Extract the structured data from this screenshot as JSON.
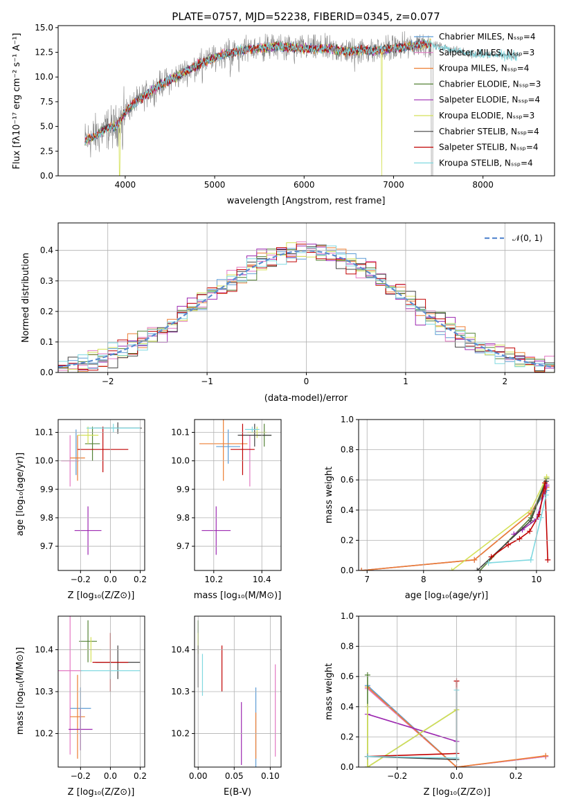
{
  "colors": {
    "chabrier_miles": "#5b9bd5",
    "salpeter_miles": "#e377c2",
    "kroupa_miles": "#ed7d31",
    "chabrier_elodie": "#548235",
    "salpeter_elodie": "#9c27b0",
    "kroupa_elodie": "#d4e157",
    "chabrier_stelib": "#404040",
    "salpeter_stelib": "#c00000",
    "kroupa_stelib": "#7fd8e0",
    "data": "#808080",
    "normal": "#5b8bd0"
  },
  "chart_data": [
    {
      "id": "spectrum",
      "type": "line",
      "title": "PLATE=0757, MJD=52238, FIBERID=0345, z=0.077",
      "xlabel": "wavelength [Angstrom, rest frame]",
      "ylabel": "Flux [fλ10⁻¹⁷ erg cm⁻² s⁻¹ A⁻¹]",
      "xlim": [
        3250,
        8800
      ],
      "ylim": [
        0,
        15.2
      ],
      "xticks": [
        "4000",
        "5000",
        "6000",
        "7000",
        "8000"
      ],
      "yticks": [
        "0.0",
        "2.5",
        "5.0",
        "7.5",
        "10.0",
        "12.5",
        "15.0"
      ],
      "legend": "upper-right",
      "series": [
        {
          "name": "Chabrier MILES, Nₛₛₚ=4",
          "key": "chabrier_miles"
        },
        {
          "name": "Salpeter MILES, Nₛₛₚ=3",
          "key": "salpeter_miles"
        },
        {
          "name": "Kroupa MILES, Nₛₛₚ=4",
          "key": "kroupa_miles"
        },
        {
          "name": "Chabrier ELODIE, Nₛₛₚ=3",
          "key": "chabrier_elodie"
        },
        {
          "name": "Salpeter ELODIE, Nₛₛₚ=4",
          "key": "salpeter_elodie"
        },
        {
          "name": "Kroupa ELODIE, Nₛₛₚ=3",
          "key": "kroupa_elodie"
        },
        {
          "name": "Chabrier STELIB, Nₛₛₚ=4",
          "key": "chabrier_stelib"
        },
        {
          "name": "Salpeter STELIB, Nₛₛₚ=4",
          "key": "salpeter_stelib"
        },
        {
          "name": "Kroupa STELIB, Nₛₛₚ=4",
          "key": "kroupa_stelib"
        }
      ],
      "continuum": [
        [
          3550,
          3.5
        ],
        [
          3700,
          4.2
        ],
        [
          3800,
          4.8
        ],
        [
          3900,
          5.0
        ],
        [
          4000,
          6.5
        ],
        [
          4100,
          7.3
        ],
        [
          4200,
          8.0
        ],
        [
          4300,
          8.6
        ],
        [
          4400,
          9.3
        ],
        [
          4500,
          9.7
        ],
        [
          4700,
          10.7
        ],
        [
          4900,
          11.6
        ],
        [
          5100,
          12.3
        ],
        [
          5300,
          12.7
        ],
        [
          5500,
          12.9
        ],
        [
          5700,
          13.1
        ],
        [
          6000,
          12.9
        ],
        [
          6300,
          12.8
        ],
        [
          6500,
          12.6
        ],
        [
          6600,
          12.7
        ],
        [
          6800,
          12.7
        ],
        [
          7000,
          12.9
        ],
        [
          7200,
          13.1
        ],
        [
          7300,
          13.3
        ],
        [
          7420,
          13.4
        ]
      ],
      "stelib_ext": [
        [
          7420,
          13.3
        ],
        [
          7600,
          12.9
        ],
        [
          7800,
          12.4
        ],
        [
          8000,
          12.3
        ],
        [
          8200,
          12.2
        ],
        [
          8400,
          12.1
        ]
      ],
      "model_wmax": 7420,
      "dips": [
        [
          3935,
          0.0
        ],
        [
          3970,
          2.5
        ],
        [
          4102,
          6.4
        ],
        [
          4862,
          8.9
        ],
        [
          5176,
          9.8
        ],
        [
          5270,
          10.0
        ],
        [
          5892,
          10.8
        ],
        [
          6563,
          10.5
        ],
        [
          6868,
          0.0
        ],
        [
          7400,
          0.0
        ]
      ],
      "noise_amp": 1.0
    },
    {
      "id": "residuals",
      "type": "bar",
      "xlabel": "(data-model)/error",
      "ylabel": "Normed distribution",
      "xlim": [
        -2.5,
        2.5
      ],
      "ylim": [
        0,
        0.49
      ],
      "xticks": [
        "−2",
        "−1",
        "0",
        "1",
        "2"
      ],
      "yticks": [
        "0.0",
        "0.1",
        "0.2",
        "0.3",
        "0.4"
      ],
      "legend": "upper-right",
      "normal_label": "𝒩(0, 1)",
      "bin_edges": [
        -2.5,
        2.5
      ],
      "bins": 50
    },
    {
      "id": "z-age",
      "type": "scatter",
      "xlabel": "Z [log₁₀(Z/Z⊙)]",
      "ylabel": "age  [log₁₀(age/yr)]",
      "xlim": [
        -0.35,
        0.23
      ],
      "ylim": [
        9.615,
        10.145
      ],
      "xticks": [
        "−0.2",
        "0.0",
        "0.2"
      ],
      "yticks": [
        "9.7",
        "9.8",
        "9.9",
        "10.0",
        "10.1"
      ],
      "points": [
        {
          "key": "chabrier_miles",
          "x": -0.23,
          "xerr": 0.0,
          "y": 10.03,
          "yerr": 0.08
        },
        {
          "key": "salpeter_miles",
          "x": -0.27,
          "xerr": 0.06,
          "y": 10.0,
          "yerr": 0.09
        },
        {
          "key": "kroupa_miles",
          "x": -0.22,
          "xerr": 0.05,
          "y": 10.01,
          "yerr": 0.08
        },
        {
          "key": "chabrier_elodie",
          "x": -0.12,
          "xerr": 0.05,
          "y": 10.06,
          "yerr": 0.06
        },
        {
          "key": "salpeter_elodie",
          "x": -0.15,
          "xerr": 0.09,
          "y": 9.755,
          "yerr": 0.085
        },
        {
          "key": "kroupa_elodie",
          "x": -0.15,
          "xerr": 0.07,
          "y": 10.09,
          "yerr": 0.03
        },
        {
          "key": "chabrier_stelib",
          "x": 0.05,
          "xerr": 0.16,
          "y": 10.115,
          "yerr": 0.02
        },
        {
          "key": "salpeter_stelib",
          "x": -0.05,
          "xerr": 0.17,
          "y": 10.04,
          "yerr": 0.08
        },
        {
          "key": "kroupa_stelib",
          "x": 0.02,
          "xerr": 0.18,
          "y": 10.115,
          "yerr": 0.015
        }
      ]
    },
    {
      "id": "mass-age",
      "type": "scatter",
      "xlabel": "mass [log₁₀(M/M⊙)]",
      "ylabel": "",
      "xlim": [
        10.12,
        10.48
      ],
      "ylim": [
        9.615,
        10.145
      ],
      "xticks": [
        "10.2",
        "10.4"
      ],
      "yticks": [
        "9.7",
        "9.8",
        "9.9",
        "10.0",
        "10.1"
      ],
      "points": [
        {
          "key": "chabrier_miles",
          "x": 10.26,
          "xerr": 0.05,
          "y": 10.05,
          "yerr": 0.06
        },
        {
          "key": "salpeter_miles",
          "x": 10.35,
          "xerr": 0.0,
          "y": 10.0,
          "yerr": 0.09
        },
        {
          "key": "kroupa_miles",
          "x": 10.24,
          "xerr": 0.1,
          "y": 10.06,
          "yerr": 0.13
        },
        {
          "key": "chabrier_elodie",
          "x": 10.41,
          "xerr": 0.03,
          "y": 10.09,
          "yerr": 0.04
        },
        {
          "key": "salpeter_elodie",
          "x": 10.21,
          "xerr": 0.06,
          "y": 9.755,
          "yerr": 0.085
        },
        {
          "key": "kroupa_elodie",
          "x": 10.38,
          "xerr": 0.04,
          "y": 10.1,
          "yerr": 0.02
        },
        {
          "key": "chabrier_stelib",
          "x": 10.37,
          "xerr": 0.07,
          "y": 10.09,
          "yerr": 0.04
        },
        {
          "key": "salpeter_stelib",
          "x": 10.32,
          "xerr": 0.05,
          "y": 10.04,
          "yerr": 0.09
        },
        {
          "key": "kroupa_stelib",
          "x": 10.36,
          "xerr": 0.03,
          "y": 10.11,
          "yerr": 0.01
        }
      ]
    },
    {
      "id": "age-weight",
      "type": "line",
      "xlabel": "age  [log₁₀(age/yr)]",
      "ylabel": "mass weight",
      "xlim": [
        6.85,
        10.32
      ],
      "ylim": [
        0,
        1
      ],
      "xticks": [
        "7",
        "8",
        "9",
        "10"
      ],
      "yticks": [
        "0.0",
        "0.2",
        "0.4",
        "0.6",
        "0.8",
        "1.0"
      ],
      "series": [
        {
          "key": "chabrier_miles",
          "points": [
            [
              6.9,
              0.0
            ],
            [
              8.9,
              0.07
            ],
            [
              9.9,
              0.38
            ],
            [
              10.18,
              0.53
            ]
          ]
        },
        {
          "key": "salpeter_miles",
          "points": [
            [
              6.9,
              0.0
            ],
            [
              8.9,
              0.07
            ],
            [
              9.9,
              0.38
            ],
            [
              10.18,
              0.57
            ]
          ]
        },
        {
          "key": "kroupa_miles",
          "points": [
            [
              6.9,
              0.0
            ],
            [
              8.9,
              0.07
            ],
            [
              9.9,
              0.38
            ],
            [
              10.18,
              0.55
            ]
          ]
        },
        {
          "key": "chabrier_elodie",
          "points": [
            [
              9.0,
              0.0
            ],
            [
              9.9,
              0.35
            ],
            [
              10.18,
              0.61
            ]
          ]
        },
        {
          "key": "salpeter_elodie",
          "points": [
            [
              9.6,
              0.24
            ],
            [
              9.75,
              0.27
            ],
            [
              10.0,
              0.34
            ],
            [
              10.18,
              0.56
            ]
          ]
        },
        {
          "key": "kroupa_elodie",
          "points": [
            [
              8.5,
              0.0
            ],
            [
              9.9,
              0.4
            ],
            [
              10.18,
              0.62
            ]
          ]
        },
        {
          "key": "chabrier_stelib",
          "points": [
            [
              8.95,
              0.0
            ],
            [
              9.9,
              0.33
            ],
            [
              10.17,
              0.59
            ]
          ]
        },
        {
          "key": "salpeter_stelib",
          "points": [
            [
              9.2,
              0.09
            ],
            [
              9.5,
              0.17
            ],
            [
              9.7,
              0.21
            ],
            [
              9.88,
              0.26
            ],
            [
              10.05,
              0.37
            ],
            [
              10.15,
              0.58
            ],
            [
              10.2,
              0.07
            ]
          ]
        },
        {
          "key": "kroupa_stelib",
          "points": [
            [
              9.15,
              0.05
            ],
            [
              9.9,
              0.07
            ],
            [
              10.08,
              0.35
            ],
            [
              10.17,
              0.5
            ]
          ]
        }
      ]
    },
    {
      "id": "z-mass",
      "type": "scatter",
      "xlabel": "Z [log₁₀(Z/Z⊙)]",
      "ylabel": "mass [log₁₀(M/M⊙)]",
      "xlim": [
        -0.35,
        0.23
      ],
      "ylim": [
        10.12,
        10.48
      ],
      "xticks": [
        "−0.2",
        "0.0",
        "0.2"
      ],
      "yticks": [
        "10.2",
        "10.3",
        "10.4"
      ],
      "points": [
        {
          "key": "chabrier_miles",
          "x": -0.2,
          "xerr": 0.07,
          "y": 10.26,
          "yerr": 0.05
        },
        {
          "key": "salpeter_miles",
          "x": -0.27,
          "xerr": 0.08,
          "y": 10.35,
          "yerr": 0.2
        },
        {
          "key": "kroupa_miles",
          "x": -0.22,
          "xerr": 0.05,
          "y": 10.24,
          "yerr": 0.1
        },
        {
          "key": "chabrier_elodie",
          "x": -0.15,
          "xerr": 0.06,
          "y": 10.42,
          "yerr": 0.05
        },
        {
          "key": "salpeter_elodie",
          "x": -0.2,
          "xerr": 0.08,
          "y": 10.21,
          "yerr": 0.05
        },
        {
          "key": "kroupa_elodie",
          "x": -0.13,
          "xerr": 0.07,
          "y": 10.4,
          "yerr": 0.03
        },
        {
          "key": "chabrier_stelib",
          "x": 0.05,
          "xerr": 0.15,
          "y": 10.37,
          "yerr": 0.04
        },
        {
          "key": "salpeter_stelib",
          "x": 0.0,
          "xerr": 0.12,
          "y": 10.37,
          "yerr": 0.07
        },
        {
          "key": "kroupa_stelib",
          "x": 0.0,
          "xerr": 0.2,
          "y": 10.35,
          "yerr": 0.02
        }
      ]
    },
    {
      "id": "ebv-mass",
      "type": "scatter",
      "xlabel": "E(B-V)",
      "ylabel": "",
      "xlim": [
        -0.005,
        0.115
      ],
      "ylim": [
        10.12,
        10.48
      ],
      "xticks": [
        "0.00",
        "0.05",
        "0.10"
      ],
      "yticks": [
        "10.2",
        "10.3",
        "10.4"
      ],
      "points": [
        {
          "key": "chabrier_miles",
          "x": 0.08,
          "xerr": 0.0,
          "y": 10.2,
          "yerr": 0.11
        },
        {
          "key": "salpeter_miles",
          "x": 0.107,
          "xerr": 0.0,
          "y": 10.255,
          "yerr": 0.11
        },
        {
          "key": "kroupa_miles",
          "x": 0.08,
          "xerr": 0.0,
          "y": 10.195,
          "yerr": 0.055
        },
        {
          "key": "chabrier_elodie",
          "x": 0.0,
          "xerr": 0.0,
          "y": 10.43,
          "yerr": 0.04
        },
        {
          "key": "salpeter_elodie",
          "x": 0.06,
          "xerr": 0.0,
          "y": 10.2,
          "yerr": 0.075
        },
        {
          "key": "kroupa_elodie",
          "x": 0.0,
          "xerr": 0.0,
          "y": 10.415,
          "yerr": 0.025
        },
        {
          "key": "chabrier_stelib",
          "x": 0.0,
          "xerr": 0.0,
          "y": 10.36,
          "yerr": 0.05
        },
        {
          "key": "salpeter_stelib",
          "x": 0.033,
          "xerr": 0.0,
          "y": 10.355,
          "yerr": 0.055
        },
        {
          "key": "kroupa_stelib",
          "x": 0.006,
          "xerr": 0.0,
          "y": 10.34,
          "yerr": 0.05
        }
      ]
    },
    {
      "id": "z-weight",
      "type": "line",
      "xlabel": "Z [log₁₀(Z/Z⊙)]",
      "ylabel": "mass weight",
      "xlim": [
        -0.33,
        0.33
      ],
      "ylim": [
        0,
        1
      ],
      "xticks": [
        "−0.2",
        "0.0",
        "0.2"
      ],
      "yticks": [
        "0.0",
        "0.2",
        "0.4",
        "0.6",
        "0.8",
        "1.0"
      ],
      "series": [
        {
          "key": "chabrier_miles",
          "points": [
            [
              -0.3,
              0.54
            ],
            [
              0.0,
              0.0
            ],
            [
              0.3,
              0.07
            ]
          ]
        },
        {
          "key": "salpeter_miles",
          "points": [
            [
              -0.3,
              0.52
            ],
            [
              0.0,
              0.0
            ],
            [
              0.3,
              0.07
            ]
          ]
        },
        {
          "key": "kroupa_miles",
          "points": [
            [
              -0.3,
              0.53
            ],
            [
              0.0,
              0.0
            ],
            [
              0.3,
              0.075
            ]
          ]
        },
        {
          "key": "chabrier_elodie",
          "points": [
            [
              -0.3,
              0.61
            ],
            [
              -0.3,
              0.0
            ],
            [
              0.0,
              0.38
            ]
          ]
        },
        {
          "key": "salpeter_elodie",
          "points": [
            [
              -0.3,
              0.35
            ],
            [
              0.0,
              0.17
            ]
          ]
        },
        {
          "key": "kroupa_elodie",
          "points": [
            [
              -0.3,
              0.4
            ],
            [
              -0.3,
              0.0
            ],
            [
              0.0,
              0.38
            ]
          ]
        },
        {
          "key": "chabrier_stelib",
          "points": [
            [
              -0.3,
              0.07
            ],
            [
              0.0,
              0.05
            ]
          ]
        },
        {
          "key": "salpeter_stelib",
          "points": [
            [
              -0.3,
              0.07
            ],
            [
              0.0,
              0.09
            ],
            [
              0.0,
              0.57
            ]
          ]
        },
        {
          "key": "kroupa_stelib",
          "points": [
            [
              -0.3,
              0.07
            ],
            [
              0.0,
              0.06
            ],
            [
              0.0,
              0.51
            ]
          ]
        }
      ]
    }
  ]
}
